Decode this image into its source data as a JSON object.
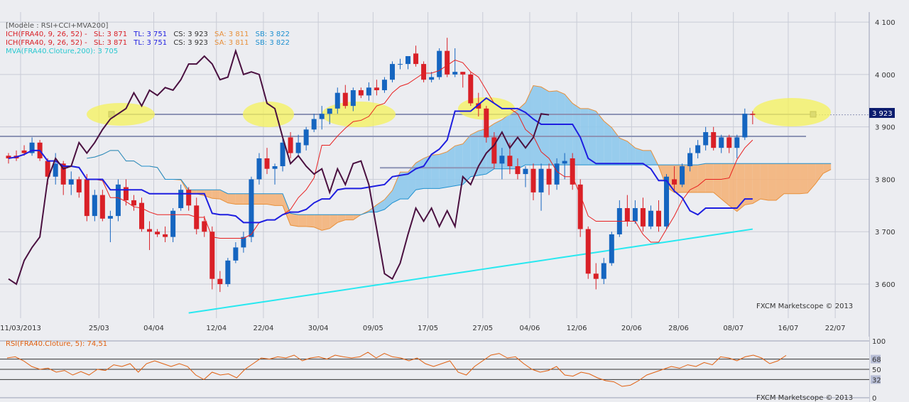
{
  "legend": {
    "model": "[Modèle : RSI+CCI+MVA200]",
    "ich1": {
      "label": "ICH(FRA40, 9, 26, 52) -",
      "sl": "SL: 3 871",
      "tl": "TL: 3 751",
      "cs": "CS: 3 923",
      "sa": "SA: 3 811",
      "sb": "SB: 3 822"
    },
    "ich2": {
      "label": "ICH(FRA40, 9, 26, 52) -",
      "sl": "SL: 3 871",
      "tl": "TL: 3 751",
      "cs": "CS: 3 923",
      "sa": "SA: 3 811",
      "sb": "SB: 3 822"
    },
    "mva": "MVA(FRA40.Cloture,200): 3 705"
  },
  "watermark_main": "FXCM Marketscope © 2013",
  "watermark_rsi": "FXCM Marketscope © 2013",
  "rsi_label": "RSI(FRA40.Cloture, 5): 74,51",
  "price_tag": "3 923",
  "colors": {
    "bg": "#ecedf1",
    "grid": "#c9ccd6",
    "bull": "#1565c0",
    "bear": "#d92027",
    "tenkan": "#e82020",
    "kijun": "#1e1ee0",
    "chikou": "#4a1040",
    "kumo": "#8ec8ec",
    "kumo_bear": "#f4b27a",
    "mva": "#28e8f0",
    "rsi": "#e06010",
    "hline": "#8d94b5",
    "ellipse": "#f6f25a"
  },
  "chart_data": [
    {
      "type": "candlestick",
      "title": "",
      "xlabel": "",
      "ylabel": "",
      "ylim": [
        3535,
        4115
      ],
      "y_ticks": [
        "4 100",
        "4 000",
        "3 900",
        "3 800",
        "3 700",
        "3 600"
      ],
      "y_tick_values": [
        4100,
        4000,
        3900,
        3800,
        3700,
        3600
      ],
      "x_labels": [
        "11/03/2013",
        "25/03",
        "04/04",
        "12/04",
        "22/04",
        "30/04",
        "09/05",
        "17/05",
        "27/05",
        "04/06",
        "12/06",
        "20/06",
        "28/06",
        "08/07",
        "16/07",
        "22/07"
      ],
      "grid": true,
      "candles": [
        [
          3845,
          3850,
          3830,
          3840
        ],
        [
          3845,
          3855,
          3835,
          3840
        ],
        [
          3855,
          3865,
          3845,
          3850
        ],
        [
          3850,
          3880,
          3845,
          3870
        ],
        [
          3870,
          3875,
          3835,
          3840
        ],
        [
          3835,
          3840,
          3790,
          3805
        ],
        [
          3805,
          3850,
          3790,
          3830
        ],
        [
          3830,
          3835,
          3770,
          3790
        ],
        [
          3790,
          3815,
          3770,
          3800
        ],
        [
          3800,
          3805,
          3765,
          3775
        ],
        [
          3800,
          3810,
          3720,
          3730
        ],
        [
          3730,
          3780,
          3720,
          3770
        ],
        [
          3770,
          3780,
          3720,
          3725
        ],
        [
          3725,
          3740,
          3680,
          3730
        ],
        [
          3730,
          3800,
          3720,
          3790
        ],
        [
          3785,
          3800,
          3750,
          3760
        ],
        [
          3760,
          3770,
          3740,
          3750
        ],
        [
          3755,
          3765,
          3700,
          3705
        ],
        [
          3705,
          3720,
          3665,
          3700
        ],
        [
          3700,
          3705,
          3690,
          3695
        ],
        [
          3695,
          3710,
          3680,
          3690
        ],
        [
          3690,
          3745,
          3680,
          3740
        ],
        [
          3745,
          3790,
          3740,
          3780
        ],
        [
          3780,
          3785,
          3740,
          3750
        ],
        [
          3750,
          3765,
          3695,
          3705
        ],
        [
          3720,
          3730,
          3690,
          3700
        ],
        [
          3700,
          3710,
          3590,
          3610
        ],
        [
          3610,
          3625,
          3585,
          3600
        ],
        [
          3600,
          3650,
          3595,
          3645
        ],
        [
          3645,
          3680,
          3640,
          3670
        ],
        [
          3670,
          3700,
          3660,
          3690
        ],
        [
          3690,
          3805,
          3680,
          3800
        ],
        [
          3800,
          3850,
          3790,
          3840
        ],
        [
          3840,
          3860,
          3810,
          3820
        ],
        [
          3820,
          3830,
          3790,
          3825
        ],
        [
          3825,
          3880,
          3815,
          3870
        ],
        [
          3880,
          3890,
          3840,
          3850
        ],
        [
          3850,
          3885,
          3845,
          3870
        ],
        [
          3865,
          3900,
          3855,
          3895
        ],
        [
          3895,
          3925,
          3890,
          3915
        ],
        [
          3915,
          3940,
          3895,
          3925
        ],
        [
          3925,
          3935,
          3905,
          3935
        ],
        [
          3935,
          3975,
          3925,
          3965
        ],
        [
          3965,
          3980,
          3935,
          3940
        ],
        [
          3940,
          3975,
          3930,
          3970
        ],
        [
          3970,
          3975,
          3955,
          3960
        ],
        [
          3960,
          3985,
          3950,
          3975
        ],
        [
          3975,
          3990,
          3960,
          3970
        ],
        [
          3970,
          3995,
          3965,
          3990
        ],
        [
          3990,
          4025,
          3985,
          4020
        ],
        [
          4020,
          4030,
          4010,
          4020
        ],
        [
          4020,
          4035,
          4010,
          4035
        ],
        [
          4040,
          4055,
          4015,
          4020
        ],
        [
          4020,
          4025,
          3985,
          3990
        ],
        [
          3990,
          4005,
          3985,
          3995
        ],
        [
          3995,
          4050,
          3990,
          4045
        ],
        [
          4045,
          4070,
          3995,
          4000
        ],
        [
          4000,
          4050,
          3995,
          4005
        ],
        [
          4005,
          4005,
          3975,
          4000
        ],
        [
          4000,
          4005,
          3940,
          3945
        ],
        [
          3945,
          3965,
          3920,
          3935
        ],
        [
          3935,
          3940,
          3870,
          3880
        ],
        [
          3880,
          3890,
          3820,
          3830
        ],
        [
          3830,
          3860,
          3800,
          3845
        ],
        [
          3845,
          3870,
          3810,
          3825
        ],
        [
          3825,
          3840,
          3800,
          3810
        ],
        [
          3810,
          3825,
          3785,
          3820
        ],
        [
          3820,
          3830,
          3760,
          3775
        ],
        [
          3775,
          3830,
          3740,
          3820
        ],
        [
          3820,
          3830,
          3770,
          3790
        ],
        [
          3790,
          3840,
          3780,
          3830
        ],
        [
          3830,
          3850,
          3800,
          3835
        ],
        [
          3840,
          3850,
          3780,
          3790
        ],
        [
          3790,
          3800,
          3690,
          3705
        ],
        [
          3705,
          3710,
          3610,
          3620
        ],
        [
          3620,
          3640,
          3590,
          3610
        ],
        [
          3610,
          3650,
          3600,
          3640
        ],
        [
          3640,
          3700,
          3635,
          3695
        ],
        [
          3695,
          3760,
          3690,
          3745
        ],
        [
          3745,
          3770,
          3710,
          3720
        ],
        [
          3720,
          3760,
          3715,
          3745
        ],
        [
          3745,
          3765,
          3700,
          3710
        ],
        [
          3710,
          3750,
          3705,
          3740
        ],
        [
          3740,
          3760,
          3700,
          3710
        ],
        [
          3710,
          3810,
          3705,
          3805
        ],
        [
          3800,
          3825,
          3775,
          3790
        ],
        [
          3790,
          3830,
          3785,
          3825
        ],
        [
          3825,
          3860,
          3815,
          3850
        ],
        [
          3850,
          3875,
          3840,
          3865
        ],
        [
          3865,
          3900,
          3855,
          3890
        ],
        [
          3890,
          3900,
          3855,
          3860
        ],
        [
          3860,
          3885,
          3850,
          3880
        ],
        [
          3880,
          3885,
          3850,
          3860
        ],
        [
          3860,
          3885,
          3840,
          3880
        ],
        [
          3880,
          3935,
          3875,
          3925
        ],
        [
          3925,
          3930,
          3905,
          3923
        ]
      ]
    },
    {
      "type": "line",
      "title": "",
      "ylim": [
        0,
        100
      ],
      "y_ticks": [
        "100",
        "68",
        "50",
        "32",
        "0"
      ],
      "y_tick_values": [
        100,
        68,
        50,
        32,
        0
      ],
      "values": [
        70,
        72,
        65,
        55,
        50,
        52,
        45,
        48,
        40,
        46,
        40,
        50,
        48,
        58,
        55,
        60,
        45,
        60,
        65,
        60,
        55,
        60,
        55,
        40,
        32,
        45,
        40,
        42,
        35,
        50,
        60,
        70,
        68,
        72,
        70,
        75,
        65,
        70,
        72,
        68,
        75,
        72,
        70,
        72,
        80,
        70,
        78,
        72,
        70,
        65,
        70,
        60,
        55,
        60,
        65,
        45,
        40,
        55,
        65,
        75,
        78,
        70,
        72,
        60,
        50,
        45,
        48,
        55,
        40,
        38,
        45,
        42,
        35,
        30,
        28,
        20,
        22,
        30,
        40,
        45,
        50,
        55,
        52,
        58,
        55,
        62,
        58,
        72,
        70,
        65,
        72,
        75,
        70,
        60,
        65,
        74.51
      ],
      "series": [
        {
          "name": "RSI(FRA40.Cloture, 5)",
          "value": 74.51
        }
      ]
    }
  ]
}
